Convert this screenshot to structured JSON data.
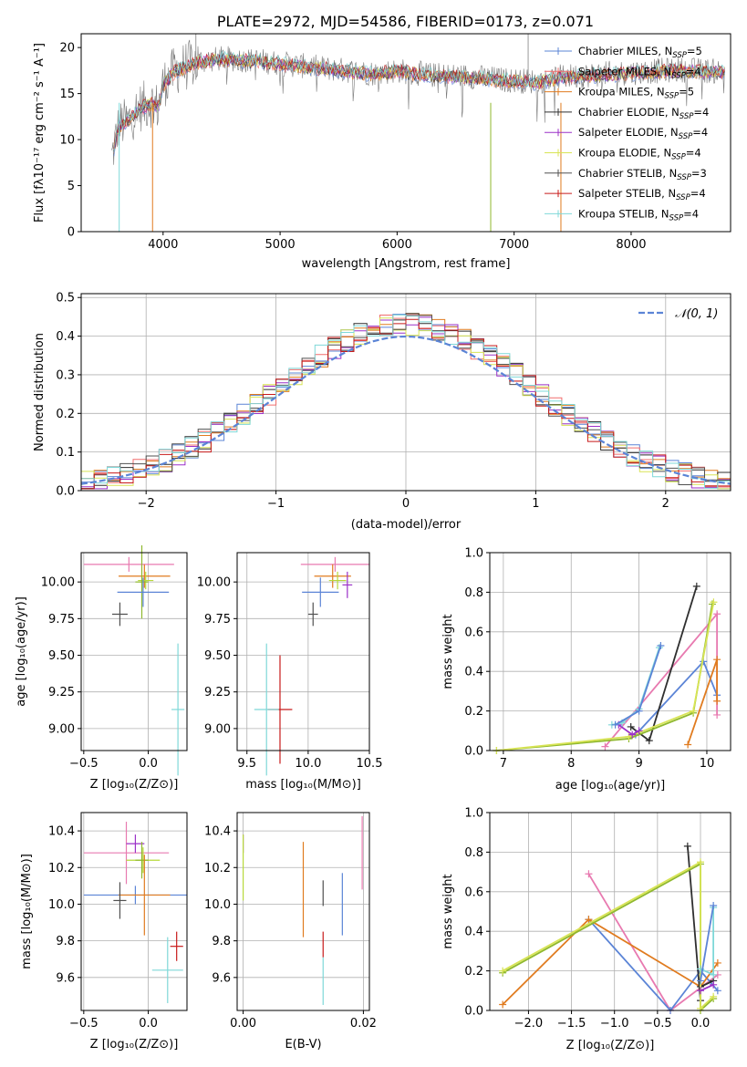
{
  "figure": {
    "title": "PLATE=2972, MJD=54586, FIBERID=0173, z=0.071"
  },
  "colors": {
    "chabrier_miles": "#5b84d6",
    "salpeter_miles": "#f06d6d",
    "kroupa_miles": "#e07b1f",
    "chabrier_elodie": "#2f2f2f",
    "salpeter_elodie": "#9b30c8",
    "kroupa_elodie": "#d8e455",
    "chabrier_stelib": "#505050",
    "salpeter_stelib": "#c81a1a",
    "kroupa_stelib": "#7fd8d8",
    "pink": "#e87ab0",
    "yellowgreen": "#b7d93a",
    "olive": "#8fb82e",
    "normal_curve": "#5b84d6"
  },
  "legend_spectrum": [
    {
      "label": "Chabrier MILES, N",
      "sub": "SSP",
      "eq": "=5",
      "color": "#5b84d6"
    },
    {
      "label": "Salpeter MILES, N",
      "sub": "SSP",
      "eq": "=4",
      "color": "#f06d6d"
    },
    {
      "label": "Kroupa MILES, N",
      "sub": "SSP",
      "eq": "=5",
      "color": "#e07b1f"
    },
    {
      "label": "Chabrier ELODIE, N",
      "sub": "SSP",
      "eq": "=4",
      "color": "#2f2f2f"
    },
    {
      "label": "Salpeter ELODIE, N",
      "sub": "SSP",
      "eq": "=4",
      "color": "#9b30c8"
    },
    {
      "label": "Kroupa ELODIE, N",
      "sub": "SSP",
      "eq": "=4",
      "color": "#d8e455"
    },
    {
      "label": "Chabrier STELIB, N",
      "sub": "SSP",
      "eq": "=3",
      "color": "#505050"
    },
    {
      "label": "Salpeter STELIB, N",
      "sub": "SSP",
      "eq": "=4",
      "color": "#c81a1a"
    },
    {
      "label": "Kroupa STELIB, N",
      "sub": "SSP",
      "eq": "=4",
      "color": "#7fd8d8"
    }
  ],
  "chart_data": [
    {
      "id": "spectrum",
      "type": "line",
      "title": "PLATE=2972, MJD=54586, FIBERID=0173, z=0.071",
      "xlabel": "wavelength [Angstrom, rest frame]",
      "ylabel": "Flux [fλ10⁻¹⁷ erg cm⁻² s⁻¹ A⁻¹]",
      "xlim": [
        3300,
        8850
      ],
      "ylim": [
        0,
        21.5
      ],
      "xticks": [
        4000,
        5000,
        6000,
        7000,
        8000
      ],
      "yticks": [
        0,
        5,
        10,
        15,
        20
      ],
      "continuum": [
        [
          3560,
          8
        ],
        [
          3620,
          11.5
        ],
        [
          3700,
          12
        ],
        [
          3800,
          13.5
        ],
        [
          3900,
          14
        ],
        [
          3960,
          13.5
        ],
        [
          4000,
          16
        ],
        [
          4100,
          17.5
        ],
        [
          4300,
          18.5
        ],
        [
          4500,
          18.8
        ],
        [
          4800,
          18.6
        ],
        [
          5000,
          18.3
        ],
        [
          5200,
          18.0
        ],
        [
          5500,
          17.6
        ],
        [
          5800,
          17.2
        ],
        [
          6000,
          17.5
        ],
        [
          6300,
          17.0
        ],
        [
          6600,
          16.9
        ],
        [
          6900,
          16.5
        ],
        [
          7200,
          16.3
        ],
        [
          7400,
          16.8
        ],
        [
          7600,
          17.0
        ],
        [
          8000,
          17.3
        ],
        [
          8400,
          17.6
        ],
        [
          8800,
          17.4
        ]
      ]
    },
    {
      "id": "residuals",
      "type": "histogram",
      "xlabel": "(data-model)/error",
      "ylabel": "Normed distribution",
      "xlim": [
        -2.5,
        2.5
      ],
      "ylim": [
        0,
        0.51
      ],
      "xticks": [
        -2,
        -1,
        0,
        1,
        2
      ],
      "yticks": [
        0.0,
        0.1,
        0.2,
        0.3,
        0.4,
        0.5
      ],
      "bin_width": 0.1,
      "legend": "𝒩(0, 1)"
    },
    {
      "id": "age_vs_Z",
      "type": "errorbar",
      "xlabel": "Z [log₁₀(Z/Z⊙)]",
      "ylabel": "age  [log₁₀(age/yr)]",
      "xlim": [
        -0.52,
        0.3
      ],
      "ylim": [
        8.85,
        10.2
      ],
      "xticks": [
        -0.5,
        0.0
      ],
      "yticks": [
        9.0,
        9.25,
        9.5,
        9.75,
        10.0
      ],
      "points": [
        {
          "x": -0.15,
          "y": 10.12,
          "xerr": 0.35,
          "yerr": 0.05,
          "c": "#e87ab0"
        },
        {
          "x": -0.03,
          "y": 10.04,
          "xerr": 0.2,
          "yerr": 0.08,
          "c": "#e07b1f"
        },
        {
          "x": -0.02,
          "y": 10.01,
          "xerr": 0.06,
          "yerr": 0.06,
          "c": "#b7d93a"
        },
        {
          "x": -0.05,
          "y": 10.0,
          "xerr": 0.05,
          "yerr": 0.25,
          "c": "#8fb82e"
        },
        {
          "x": -0.04,
          "y": 9.93,
          "xerr": 0.2,
          "yerr": 0.1,
          "c": "#5b84d6"
        },
        {
          "x": -0.22,
          "y": 9.78,
          "xerr": 0.06,
          "yerr": 0.08,
          "c": "#505050"
        },
        {
          "x": 0.23,
          "y": 9.13,
          "xerr": 0.05,
          "yerr": 0.45,
          "c": "#7fd8d8"
        }
      ]
    },
    {
      "id": "age_vs_mass",
      "type": "errorbar",
      "xlabel": "mass [log₁₀(M/M⊙)]",
      "ylabel": "",
      "xlim": [
        9.42,
        10.5
      ],
      "ylim": [
        8.85,
        10.2
      ],
      "xticks": [
        9.5,
        10.0,
        10.5
      ],
      "yticks": [
        9.0,
        9.25,
        9.5,
        9.75,
        10.0
      ],
      "points": [
        {
          "x": 10.22,
          "y": 10.12,
          "xerr": 0.28,
          "yerr": 0.05,
          "c": "#e87ab0"
        },
        {
          "x": 10.2,
          "y": 10.04,
          "xerr": 0.15,
          "yerr": 0.08,
          "c": "#e07b1f"
        },
        {
          "x": 10.24,
          "y": 10.01,
          "xerr": 0.07,
          "yerr": 0.06,
          "c": "#b7d93a"
        },
        {
          "x": 10.32,
          "y": 9.98,
          "xerr": 0.04,
          "yerr": 0.09,
          "c": "#9b30c8"
        },
        {
          "x": 10.1,
          "y": 9.93,
          "xerr": 0.15,
          "yerr": 0.1,
          "c": "#5b84d6"
        },
        {
          "x": 10.04,
          "y": 9.78,
          "xerr": 0.04,
          "yerr": 0.08,
          "c": "#505050"
        },
        {
          "x": 9.77,
          "y": 9.13,
          "xerr": 0.1,
          "yerr": 0.37,
          "c": "#c81a1a"
        },
        {
          "x": 9.66,
          "y": 9.13,
          "xerr": 0.1,
          "yerr": 0.45,
          "c": "#7fd8d8"
        }
      ]
    },
    {
      "id": "weight_vs_age",
      "type": "line",
      "xlabel": "age  [log₁₀(age/yr)]",
      "ylabel": "mass weight",
      "xlim": [
        6.8,
        10.35
      ],
      "ylim": [
        0,
        1.0
      ],
      "xticks": [
        7,
        8,
        9,
        10
      ],
      "yticks": [
        0.0,
        0.2,
        0.4,
        0.6,
        0.8,
        1.0
      ],
      "series": [
        {
          "c": "#e87ab0",
          "pts": [
            [
              8.5,
              0.02
            ],
            [
              10.15,
              0.69
            ],
            [
              10.15,
              0.18
            ]
          ]
        },
        {
          "c": "#5b84d6",
          "pts": [
            [
              8.95,
              0.08
            ],
            [
              9.95,
              0.45
            ],
            [
              10.15,
              0.28
            ]
          ]
        },
        {
          "c": "#e07b1f",
          "pts": [
            [
              9.72,
              0.03
            ],
            [
              10.15,
              0.46
            ],
            [
              10.15,
              0.25
            ]
          ]
        },
        {
          "c": "#2f2f2f",
          "pts": [
            [
              8.88,
              0.12
            ],
            [
              9.15,
              0.05
            ],
            [
              9.85,
              0.83
            ]
          ]
        },
        {
          "c": "#8fb82e",
          "pts": [
            [
              6.9,
              0.0
            ],
            [
              8.85,
              0.06
            ],
            [
              9.8,
              0.19
            ],
            [
              10.08,
              0.74
            ]
          ]
        },
        {
          "c": "#d8e455",
          "pts": [
            [
              6.9,
              0.0
            ],
            [
              8.85,
              0.07
            ],
            [
              9.8,
              0.2
            ],
            [
              10.1,
              0.75
            ]
          ]
        },
        {
          "c": "#9b30c8",
          "pts": [
            [
              8.7,
              0.13
            ],
            [
              8.9,
              0.08
            ],
            [
              9.0,
              0.1
            ]
          ]
        },
        {
          "c": "#7fd8d8",
          "pts": [
            [
              8.6,
              0.13
            ],
            [
              8.75,
              0.14
            ],
            [
              9.0,
              0.21
            ],
            [
              9.3,
              0.52
            ]
          ]
        },
        {
          "c": "#5b84d6",
          "pts": [
            [
              8.65,
              0.13
            ],
            [
              9.0,
              0.2
            ],
            [
              9.32,
              0.53
            ]
          ]
        }
      ]
    },
    {
      "id": "mass_vs_Z",
      "type": "errorbar",
      "xlabel": "Z [log₁₀(Z/Z⊙)]",
      "ylabel": "mass [log₁₀(M/M⊙)]",
      "xlim": [
        -0.52,
        0.3
      ],
      "ylim": [
        9.42,
        10.5
      ],
      "xticks": [
        -0.5,
        0.0
      ],
      "yticks": [
        9.6,
        9.8,
        10.0,
        10.2,
        10.4
      ],
      "points": [
        {
          "x": -0.17,
          "y": 10.28,
          "xerr": 0.33,
          "yerr": 0.17,
          "c": "#e87ab0"
        },
        {
          "x": -0.1,
          "y": 10.33,
          "xerr": 0.07,
          "yerr": 0.05,
          "c": "#9b30c8"
        },
        {
          "x": -0.04,
          "y": 10.24,
          "xerr": 0.13,
          "yerr": 0.07,
          "c": "#b7d93a"
        },
        {
          "x": -0.05,
          "y": 10.24,
          "xerr": 0.05,
          "yerr": 0.1,
          "c": "#8fb82e"
        },
        {
          "x": -0.1,
          "y": 10.05,
          "xerr": 0.4,
          "yerr": 0.05,
          "c": "#5b84d6"
        },
        {
          "x": -0.03,
          "y": 10.05,
          "xerr": 0.2,
          "yerr": 0.22,
          "c": "#e07b1f"
        },
        {
          "x": -0.22,
          "y": 10.02,
          "xerr": 0.05,
          "yerr": 0.1,
          "c": "#505050"
        },
        {
          "x": 0.22,
          "y": 9.77,
          "xerr": 0.05,
          "yerr": 0.08,
          "c": "#c81a1a"
        },
        {
          "x": 0.15,
          "y": 9.64,
          "xerr": 0.12,
          "yerr": 0.18,
          "c": "#7fd8d8"
        }
      ]
    },
    {
      "id": "mass_vs_ebv",
      "type": "errorbar",
      "xlabel": "E(B-V)",
      "ylabel": "",
      "xlim": [
        -0.001,
        0.021
      ],
      "ylim": [
        9.42,
        10.5
      ],
      "xticks": [
        0.0,
        0.02
      ],
      "xtick_labels": [
        "0.00",
        "0.02"
      ],
      "yticks": [
        9.6,
        9.8,
        10.0,
        10.2,
        10.4
      ],
      "points": [
        {
          "x": 0.0,
          "y": 10.33,
          "xerr": 0,
          "yerr": 0.05,
          "c": "#9b30c8"
        },
        {
          "x": 0.0,
          "y": 10.2,
          "xerr": 0,
          "yerr": 0.18,
          "c": "#b7d93a"
        },
        {
          "x": 0.01,
          "y": 10.08,
          "xerr": 0,
          "yerr": 0.26,
          "c": "#e07b1f"
        },
        {
          "x": 0.0133,
          "y": 10.06,
          "xerr": 0,
          "yerr": 0.07,
          "c": "#505050"
        },
        {
          "x": 0.0165,
          "y": 10.0,
          "xerr": 0,
          "yerr": 0.17,
          "c": "#5b84d6"
        },
        {
          "x": 0.0133,
          "y": 9.78,
          "xerr": 0,
          "yerr": 0.07,
          "c": "#c81a1a"
        },
        {
          "x": 0.0133,
          "y": 9.58,
          "xerr": 0,
          "yerr": 0.13,
          "c": "#7fd8d8"
        },
        {
          "x": 0.0198,
          "y": 10.28,
          "xerr": 0,
          "yerr": 0.2,
          "c": "#e87ab0"
        }
      ]
    },
    {
      "id": "weight_vs_Z",
      "type": "line",
      "xlabel": "Z [log₁₀(Z/Z⊙)]",
      "ylabel": "mass weight",
      "xlim": [
        -2.45,
        0.35
      ],
      "ylim": [
        0,
        1.0
      ],
      "xticks": [
        -2.0,
        -1.5,
        -1.0,
        -0.5,
        0.0
      ],
      "yticks": [
        0.0,
        0.2,
        0.4,
        0.6,
        0.8,
        1.0
      ],
      "series": [
        {
          "c": "#e87ab0",
          "pts": [
            [
              -1.3,
              0.69
            ],
            [
              -0.35,
              0.0
            ],
            [
              0.2,
              0.18
            ]
          ]
        },
        {
          "c": "#5b84d6",
          "pts": [
            [
              -1.3,
              0.46
            ],
            [
              -0.35,
              0.0
            ],
            [
              0.0,
              0.2
            ],
            [
              0.2,
              0.1
            ]
          ]
        },
        {
          "c": "#e07b1f",
          "pts": [
            [
              -2.3,
              0.03
            ],
            [
              -1.3,
              0.46
            ],
            [
              0.0,
              0.12
            ],
            [
              0.2,
              0.24
            ]
          ]
        },
        {
          "c": "#2f2f2f",
          "pts": [
            [
              -0.15,
              0.83
            ],
            [
              0.0,
              0.05
            ],
            [
              0.0,
              0.12
            ],
            [
              0.15,
              0.15
            ]
          ]
        },
        {
          "c": "#8fb82e",
          "pts": [
            [
              -2.3,
              0.19
            ],
            [
              0.0,
              0.74
            ],
            [
              0.0,
              0.0
            ],
            [
              0.15,
              0.06
            ]
          ]
        },
        {
          "c": "#d8e455",
          "pts": [
            [
              -2.3,
              0.2
            ],
            [
              0.0,
              0.75
            ],
            [
              0.0,
              0.01
            ],
            [
              0.15,
              0.07
            ]
          ]
        },
        {
          "c": "#7fd8d8",
          "pts": [
            [
              0.0,
              0.21
            ],
            [
              0.15,
              0.18
            ],
            [
              0.15,
              0.52
            ]
          ]
        },
        {
          "c": "#9b30c8",
          "pts": [
            [
              0.0,
              0.1
            ],
            [
              0.15,
              0.13
            ]
          ]
        },
        {
          "c": "#5b84d6",
          "pts": [
            [
              0.0,
              0.15
            ],
            [
              0.15,
              0.53
            ]
          ]
        }
      ]
    }
  ]
}
